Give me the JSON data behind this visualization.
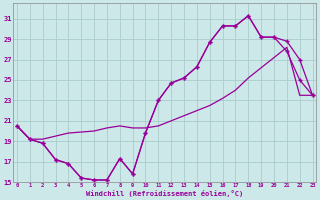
{
  "xlabel": "Windchill (Refroidissement éolien,°C)",
  "hours": [
    0,
    1,
    2,
    3,
    4,
    5,
    6,
    7,
    8,
    9,
    10,
    11,
    12,
    13,
    14,
    15,
    16,
    17,
    18,
    19,
    20,
    21,
    22,
    23
  ],
  "line1": [
    20.5,
    19.2,
    18.8,
    17.2,
    16.8,
    15.4,
    15.2,
    15.2,
    17.3,
    15.8,
    19.8,
    23.0,
    24.7,
    25.2,
    26.3,
    28.7,
    30.3,
    30.3,
    31.3,
    29.2,
    29.2,
    27.8,
    25.0,
    23.5
  ],
  "line2": [
    20.5,
    19.2,
    18.8,
    17.2,
    16.8,
    15.4,
    15.2,
    15.2,
    17.3,
    15.8,
    19.8,
    23.0,
    24.7,
    25.2,
    26.3,
    28.7,
    30.3,
    30.3,
    31.3,
    29.2,
    29.2,
    28.8,
    27.0,
    23.5
  ],
  "line3": [
    20.5,
    19.2,
    19.2,
    19.5,
    19.8,
    19.9,
    20.0,
    20.3,
    20.5,
    20.3,
    20.3,
    20.5,
    21.0,
    21.5,
    22.0,
    22.5,
    23.2,
    24.0,
    25.2,
    26.2,
    27.2,
    28.2,
    23.5,
    23.5
  ],
  "line_color": "#990099",
  "bg_color": "#cce8e8",
  "grid_color": "#aacccc",
  "ylim": [
    15,
    32
  ],
  "yticks": [
    15,
    17,
    19,
    21,
    23,
    25,
    27,
    29,
    31
  ],
  "xticks": [
    0,
    1,
    2,
    3,
    4,
    5,
    6,
    7,
    8,
    9,
    10,
    11,
    12,
    13,
    14,
    15,
    16,
    17,
    18,
    19,
    20,
    21,
    22,
    23
  ]
}
